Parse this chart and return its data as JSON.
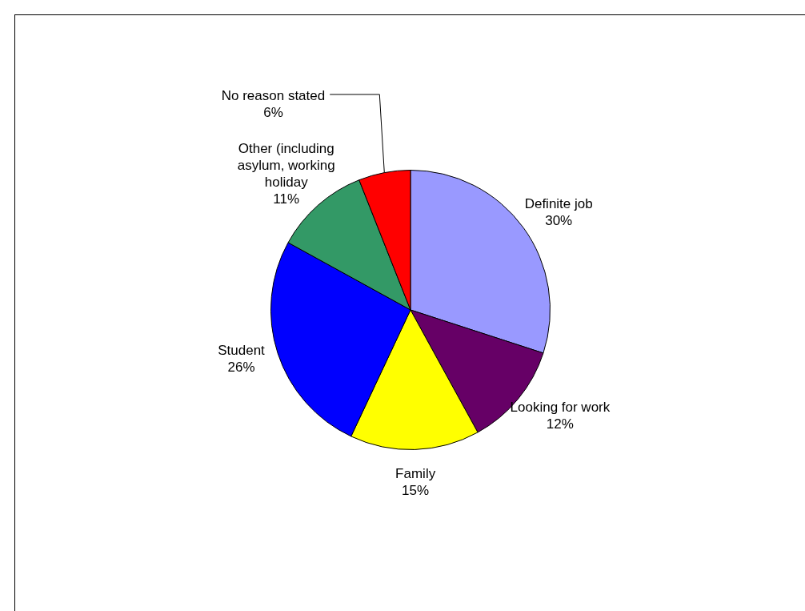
{
  "chart_data": {
    "type": "pie",
    "categories": [
      "Definite job",
      "Looking for work",
      "Family",
      "Student",
      "Other (including asylum, working holiday",
      "No reason stated"
    ],
    "values": [
      30,
      12,
      15,
      26,
      11,
      6
    ],
    "colors": [
      "#9999ff",
      "#660066",
      "#ffff00",
      "#0000ff",
      "#339966",
      "#ff0000"
    ],
    "value_labels": [
      "30%",
      "12%",
      "15%",
      "26%",
      "11%",
      "6%"
    ],
    "legend": false
  }
}
